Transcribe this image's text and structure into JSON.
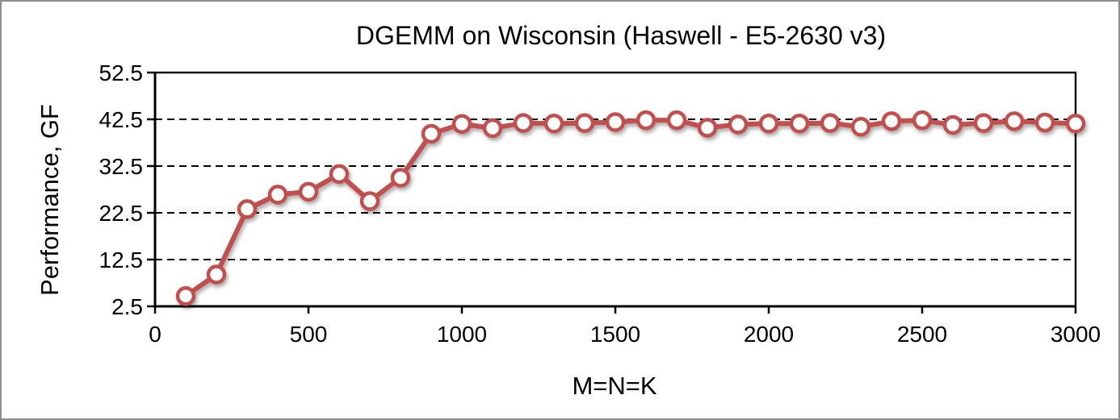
{
  "window": {
    "background_color": "#ffffff",
    "border_color": "#8f8f8f"
  },
  "chart_data": {
    "type": "line",
    "title": "DGEMM on Wisconsin (Haswell - E5-2630 v3)",
    "xlabel": "M=N=K",
    "ylabel": "Performance, GF",
    "x": [
      100,
      200,
      300,
      400,
      500,
      600,
      700,
      800,
      900,
      1000,
      1100,
      1200,
      1300,
      1400,
      1500,
      1600,
      1700,
      1800,
      1900,
      2000,
      2100,
      2200,
      2300,
      2400,
      2500,
      2600,
      2700,
      2800,
      2900,
      3000
    ],
    "values": [
      4.7,
      9.3,
      23.3,
      26.4,
      27.0,
      30.8,
      25.0,
      30.0,
      39.4,
      41.5,
      40.6,
      41.7,
      41.6,
      41.7,
      41.9,
      42.3,
      42.3,
      40.7,
      41.4,
      41.6,
      41.6,
      41.7,
      40.9,
      42.1,
      42.3,
      41.3,
      41.7,
      42.1,
      41.8,
      41.6
    ],
    "xlim": [
      0,
      3000
    ],
    "ylim": [
      2.5,
      52.5
    ],
    "x_ticks": [
      0,
      500,
      1000,
      1500,
      2000,
      2500,
      3000
    ],
    "y_ticks": [
      2.5,
      12.5,
      22.5,
      32.5,
      42.5,
      52.5
    ],
    "grid": "horizontal-dashed-black",
    "legend": "none",
    "line_color": "#c0504d",
    "marker_fill": "#ffffff",
    "marker_border": "#c0504d",
    "axis_color": "#000000"
  }
}
